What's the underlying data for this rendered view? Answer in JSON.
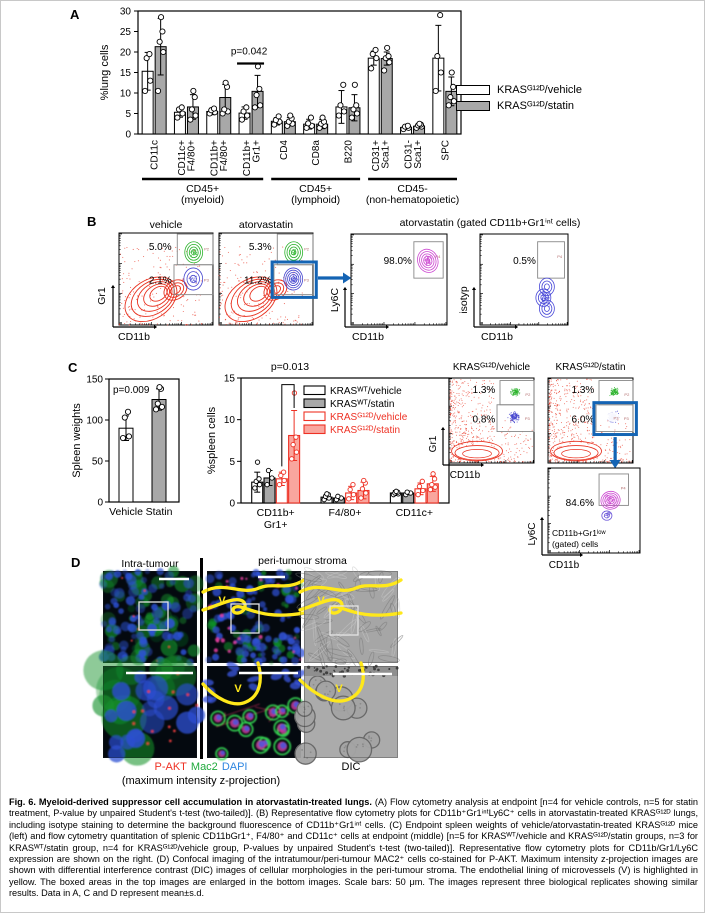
{
  "panels": {
    "A": "A",
    "B": "B",
    "C": "C",
    "D": "D"
  },
  "legendA": {
    "items": [
      {
        "label": "KRASᴳ¹²ᴰ/vehicle",
        "fill": "#ffffff",
        "stroke": "#000000"
      },
      {
        "label": "KRASᴳ¹²ᴰ/statin",
        "fill": "#a8a8a8",
        "stroke": "#000000"
      }
    ]
  },
  "chart_data": [
    {
      "id": "lung_cells",
      "type": "bar",
      "title": "",
      "xlabel": "",
      "ylabel": "%lung cells",
      "ylim": [
        0,
        30
      ],
      "yticks": [
        0,
        5,
        10,
        15,
        20,
        25,
        30
      ],
      "categories": [
        "CD11c",
        "CD11c+|F4/80+",
        "CD11b+|F4/80+",
        "CD11b+|Gr1+",
        "CD4",
        "CD8a",
        "B220",
        "CD31+|Sca1+",
        "CD31-|Sca1+",
        "SPC"
      ],
      "group_brackets": [
        {
          "label": "CD45+",
          "sub": "(myeloid)",
          "from": 0,
          "to": 3
        },
        {
          "label": "CD45+",
          "sub": "(lymphoid)",
          "from": 4,
          "to": 6
        },
        {
          "label": "CD45-",
          "sub": "(non-hematopoietic)",
          "from": 7,
          "to": 9
        }
      ],
      "series": [
        {
          "name": "KRASᴳ¹²ᴰ/vehicle",
          "fill": "#ffffff",
          "stroke": "#000000",
          "values": [
            15.3,
            5.3,
            5.5,
            5.1,
            3.1,
            2.4,
            6.6,
            18.5,
            1.6,
            18.5
          ],
          "errors": [
            4.6,
            1.2,
            0.8,
            1.5,
            0.9,
            1.2,
            4.0,
            1.7,
            0.4,
            8.0
          ],
          "points": [
            [
              10.5,
              13,
              18.5,
              19.5
            ],
            [
              4,
              5,
              6,
              6.5
            ],
            [
              5,
              5.3,
              5.8,
              6.2
            ],
            [
              3.5,
              4.5,
              5.5,
              6.5
            ],
            [
              2.3,
              3,
              3.4,
              4.3
            ],
            [
              1.5,
              2,
              2.6,
              4
            ],
            [
              4.5,
              5.5,
              7,
              12
            ],
            [
              16,
              18.5,
              19.5,
              20.5
            ],
            [
              1.2,
              1.5,
              1.8,
              2
            ],
            [
              10.5,
              15,
              19,
              29
            ]
          ]
        },
        {
          "name": "KRASᴳ¹²ᴰ/statin",
          "fill": "#a8a8a8",
          "stroke": "#000000",
          "values": [
            21.3,
            6.6,
            8.9,
            10.4,
            3.0,
            2.4,
            6.4,
            18.4,
            1.9,
            10.4
          ],
          "errors": [
            6.9,
            3.0,
            3.2,
            3.9,
            1.0,
            1.1,
            3.2,
            1.6,
            0.5,
            3.5
          ],
          "points": [
            [
              10.5,
              20,
              22.5,
              25,
              28.5
            ],
            [
              3.5,
              4.5,
              6,
              9,
              10.5
            ],
            [
              5,
              5.5,
              6,
              11.5,
              12.5
            ],
            [
              6.5,
              7,
              9.5,
              11,
              16.5
            ],
            [
              2,
              2.5,
              3,
              3.8,
              4.5
            ],
            [
              1.5,
              2,
              2.5,
              3,
              4
            ],
            [
              4,
              5,
              6,
              7,
              12
            ],
            [
              15.5,
              17.5,
              18.5,
              19,
              21
            ],
            [
              1.5,
              1.8,
              2.1,
              2.3,
              2.5
            ],
            [
              7,
              8,
              9,
              11.5,
              15
            ]
          ]
        }
      ],
      "annotation": {
        "text": "p=0.042",
        "category": 3
      }
    },
    {
      "id": "spleen_weights",
      "type": "bar",
      "ylabel": "Spleen weights",
      "ylim": [
        0,
        150
      ],
      "yticks": [
        0,
        50,
        100,
        150
      ],
      "categories": [
        "Vehicle",
        "Statin"
      ],
      "values": [
        90,
        125
      ],
      "errors": [
        15,
        13
      ],
      "bar_fills": [
        "#ffffff",
        "#a8a8a8"
      ],
      "points": [
        [
          78,
          80,
          103,
          110
        ],
        [
          113,
          116,
          120,
          138,
          140
        ]
      ],
      "annotation": {
        "text": "p=0.009"
      }
    },
    {
      "id": "spleen_cells",
      "type": "bar",
      "ylabel": "%spleen cells",
      "ylim": [
        0,
        15
      ],
      "yticks": [
        0,
        5,
        10,
        15
      ],
      "categories": [
        "CD11b+|Gr1+",
        "F4/80+",
        "CD11c+"
      ],
      "series": [
        {
          "name": "KRASᵂᵀ/vehicle",
          "fill": "#ffffff",
          "stroke": "#000000",
          "text": "#000000",
          "values": [
            2.5,
            0.7,
            1.2
          ],
          "errors": [
            1.2,
            0.3,
            0.3
          ],
          "points": [
            [
              1.8,
              2.2,
              2.6,
              2.9,
              4.9
            ],
            [
              0.4,
              0.6,
              0.8,
              1.0,
              1.1
            ],
            [
              1.0,
              1.1,
              1.2,
              1.3,
              1.4
            ]
          ]
        },
        {
          "name": "KRASᵂᵀ/statin",
          "fill": "#a8a8a8",
          "stroke": "#000000",
          "text": "#000000",
          "values": [
            3.0,
            0.6,
            1.2
          ],
          "errors": [
            0.9,
            0.2,
            0.2
          ],
          "points": [
            [
              2.2,
              3.0,
              3.9
            ],
            [
              0.4,
              0.6,
              0.8
            ],
            [
              1.0,
              1.2,
              1.3
            ]
          ]
        },
        {
          "name": "KRASᴳ¹²ᴰ/vehicle",
          "fill": "#ffffff",
          "stroke": "#ee3124",
          "text": "#ee3124",
          "values": [
            2.9,
            1.2,
            1.7
          ],
          "errors": [
            0.8,
            0.8,
            0.7
          ],
          "points": [
            [
              2.2,
              2.7,
              3.3,
              3.7
            ],
            [
              0.5,
              1.0,
              1.6,
              2.2
            ],
            [
              1.0,
              1.5,
              2.0,
              2.6
            ]
          ]
        },
        {
          "name": "KRASᴳ¹²ᴰ/statin",
          "fill": "#f9a69e",
          "stroke": "#ee3124",
          "text": "#ee3124",
          "values": [
            8.1,
            1.5,
            2.3
          ],
          "errors": [
            3.0,
            1.0,
            0.9
          ],
          "points": [
            [
              5.3,
              6.1,
              7.0,
              7.9,
              13.2
            ],
            [
              0.6,
              1.2,
              1.7,
              2.4,
              2.7
            ],
            [
              1.6,
              1.9,
              2.2,
              2.9,
              3.5
            ]
          ]
        }
      ],
      "annotation": {
        "text": "p=0.013",
        "category": 0,
        "between": [
          2,
          3
        ]
      }
    }
  ],
  "flowB": {
    "header": "atorvastatin (gated CD11b+Gr1ⁱⁿᵗ cells)",
    "plots": [
      {
        "title": "vehicle",
        "pct_top": "5.0%",
        "pct_bottom": "2.1%",
        "yaxis": "Gr1",
        "xaxis": "CD11b",
        "gates": [
          "P2",
          "P3"
        ]
      },
      {
        "title": "atorvastatin",
        "pct_top": "5.3%",
        "pct_bottom": "11.2%",
        "gates": [
          "P2",
          "P3"
        ]
      },
      {
        "pct": "98.0%",
        "yaxis": "Ly6C",
        "xaxis": "CD11b",
        "gates": [
          "P4"
        ]
      },
      {
        "pct": "0.5%",
        "yaxis": "isotyp",
        "xaxis": "CD11b",
        "gates": [
          "P4"
        ]
      }
    ]
  },
  "flowC": {
    "plots": [
      {
        "title": "KRASᴳ¹²ᴰ/vehicle",
        "pct_top": "1.3%",
        "pct_bottom": "0.8%",
        "yaxis": "Gr1",
        "xaxis": "CD11b",
        "gates": [
          "P2",
          "P3"
        ]
      },
      {
        "title": "KRASᴳ¹²ᴰ/statin",
        "pct_top": "1.3%",
        "pct_bottom": "6.0%",
        "gates": [
          "P2",
          "P3"
        ]
      },
      {
        "pct": "84.6%",
        "yaxis": "Ly6C",
        "xaxis": "CD11b",
        "gates": [
          "P4"
        ],
        "note": "CD11b+Gr1ˡᵒʷ|(gated) cells"
      }
    ]
  },
  "panelD": {
    "col1_title": "Intra-tumour",
    "col23_title": "peri-tumour stroma",
    "stains": [
      {
        "text": "P-AKT",
        "color": "#ee3124"
      },
      {
        "text": "Mac2",
        "color": "#1faa3c"
      },
      {
        "text": "DAPI",
        "color": "#2f86e0"
      }
    ],
    "projection_note": "(maximum intensity z-projection)",
    "dic_label": "DIC",
    "vessel_label": "V"
  },
  "colors": {
    "accent_blue": "#1464b4",
    "flow_red": "#e8311f",
    "flow_green": "#28b228",
    "flow_blue": "#4747cf",
    "flow_magenta": "#cd4ad2",
    "vessel_yellow": "#ffe81a",
    "bar_gray": "#a8a8a8",
    "kras_red": "#ee3124",
    "kras_pink": "#f9a69e"
  },
  "caption": {
    "lead": "Fig. 6. Myeloid-derived suppressor cell accumulation in atorvastatin-treated lungs.",
    "body": " (A) Flow cytometry analysis at endpoint [n=4 for vehicle controls, n=5 for statin treatment, P-value by unpaired Student's t-test (two-tailed)]. (B) Representative flow cytometry plots for CD11b⁺Gr1ⁱⁿᵗLy6C⁺ cells in atorvastatin-treated KRASᴳ¹²ᴰ lungs, including isotype staining to determine the background fluorescence of CD11b⁺Gr1ⁱⁿᵗ cells. (C) Endpoint spleen weights of vehicle/atorvastatin-treated KRASᴳ¹²ᴰ mice (left) and flow cytometry quantitation of splenic CD11bGr1⁺, F4/80⁺ and CD11c⁺ cells at endpoint (middle) [n=5 for KRASᵂᵀ/vehicle and KRASᴳ¹²ᴰ/statin groups, n=3 for KRASᵂᵀ/statin group, n=4 for KRASᴳ¹²ᴰ/vehicle group, P-values by unpaired Student's t-test (two-tailed)]. Representative flow cytometry plots for CD11b/Gr1/Ly6C expression are shown on the right. (D) Confocal imaging of the intratumour/peri-tumour MAC2⁺ cells co-stained for P-AKT. Maximum intensity z-projection images are shown with differential interference contrast (DIC) images of cellular morphologies in the peri-tumour stroma. The endothelial lining of microvessels (V) is highlighted in yellow. The boxed areas in the top images are enlarged in the bottom images. Scale bars: 50 μm. The images represent three biological replicates showing similar results. Data in A, C and D represent mean±s.d."
  }
}
